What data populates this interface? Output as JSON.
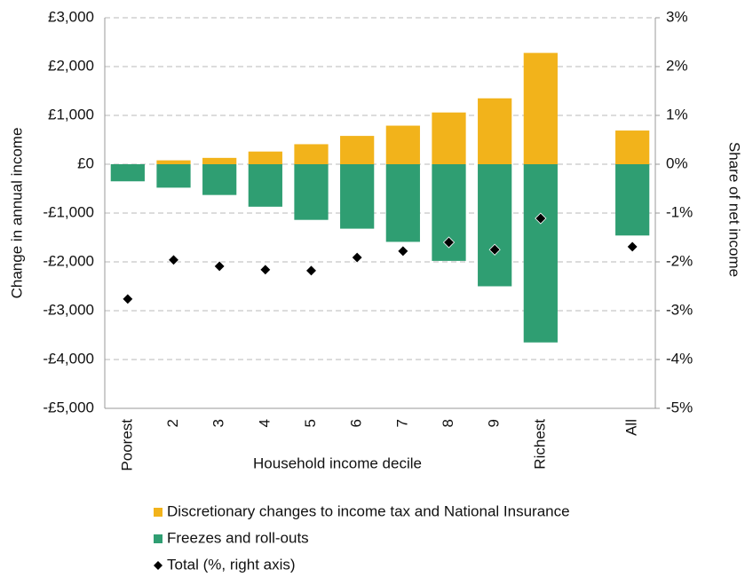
{
  "chart_data": {
    "type": "bar",
    "x_label": "Household income decile",
    "y_label": "Change in annual income",
    "y2_label": "Share of net income",
    "categories": [
      "Poorest",
      "2",
      "3",
      "4",
      "5",
      "6",
      "7",
      "8",
      "9",
      "Richest",
      null,
      "All"
    ],
    "series": [
      {
        "name": "Discretionary changes to income tax and National Insurance",
        "color": "#f2b31b",
        "values": [
          0,
          80,
          130,
          260,
          410,
          580,
          790,
          1060,
          1350,
          2280,
          null,
          690
        ]
      },
      {
        "name": "Freezes and roll-outs",
        "color": "#2f9e72",
        "values": [
          -350,
          -480,
          -630,
          -870,
          -1140,
          -1320,
          -1590,
          -1980,
          -2500,
          -3650,
          null,
          -1460
        ]
      },
      {
        "name": "Total (%, right axis)",
        "color": "#000000",
        "axis": "y2",
        "marker": "diamond",
        "values": [
          -2.76,
          -1.96,
          -2.09,
          -2.16,
          -2.18,
          -1.91,
          -1.78,
          -1.6,
          -1.75,
          -1.11,
          null,
          -1.69
        ]
      }
    ],
    "ylim": [
      -5000,
      3000
    ],
    "yticks": [
      {
        "value": -5000,
        "label": "-£5,000"
      },
      {
        "value": -4000,
        "label": "-£4,000"
      },
      {
        "value": -3000,
        "label": "-£3,000"
      },
      {
        "value": -2000,
        "label": "-£2,000"
      },
      {
        "value": -1000,
        "label": "-£1,000"
      },
      {
        "value": 0,
        "label": "£0"
      },
      {
        "value": 1000,
        "label": "£1,000"
      },
      {
        "value": 2000,
        "label": "£2,000"
      },
      {
        "value": 3000,
        "label": "£3,000"
      }
    ],
    "y2lim": [
      -5,
      3
    ],
    "y2ticks": [
      {
        "value": -5,
        "label": "-5%"
      },
      {
        "value": -4,
        "label": "-4%"
      },
      {
        "value": -3,
        "label": "-3%"
      },
      {
        "value": -2,
        "label": "-2%"
      },
      {
        "value": -1,
        "label": "-1%"
      },
      {
        "value": 0,
        "label": "0%"
      },
      {
        "value": 1,
        "label": "1%"
      },
      {
        "value": 2,
        "label": "2%"
      },
      {
        "value": 3,
        "label": "3%"
      }
    ],
    "grid": true
  }
}
